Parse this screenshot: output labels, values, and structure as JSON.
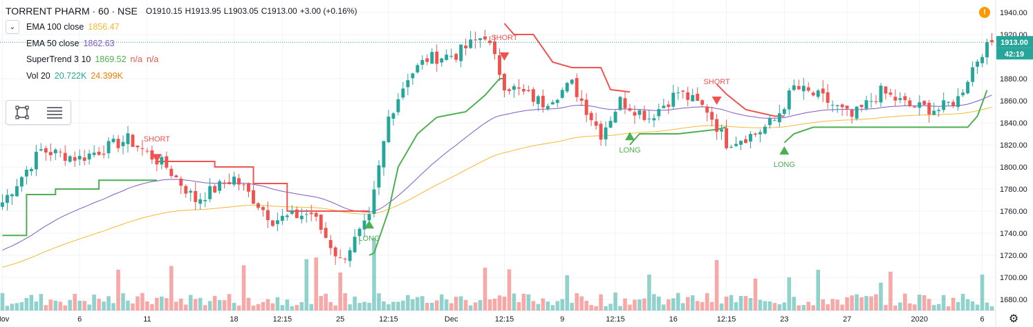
{
  "header": {
    "title": "TORRENT PHARM · 60 · NSE",
    "open": "O1910.15",
    "high": "H1913.95",
    "low": "L1903.05",
    "close": "C1913.00",
    "change": "+3.00 (+0.16%)"
  },
  "indicators": [
    {
      "name": "EMA 100 close",
      "value": "1856.47",
      "color": "#f5b931"
    },
    {
      "name": "EMA 50 close",
      "value": "1862.63",
      "color": "#7e57c2"
    },
    {
      "name": "SuperTrend 3 10",
      "value": "1869.52",
      "extra1": "n/a",
      "extra2": "n/a",
      "color": "#4caf50",
      "extra_color": "#ef5350"
    },
    {
      "name": "Vol 20",
      "value": "20.722K",
      "extra1": "24.399K",
      "color": "#26a69a",
      "extra_color": "#f57c00"
    }
  ],
  "price_tag": {
    "value": "1913.00",
    "countdown": "42:19"
  },
  "chart_data": {
    "type": "candlestick",
    "symbol": "TORRENT PHARM",
    "interval": "60",
    "exchange": "NSE",
    "ylim": [
      1675,
      1945
    ],
    "y_ticks": [
      "1940.00",
      "1920.00",
      "1880.00",
      "1860.00",
      "1840.00",
      "1820.00",
      "1800.00",
      "1780.00",
      "1760.00",
      "1740.00",
      "1720.00",
      "1700.00",
      "1680.00"
    ],
    "x_ticks": [
      {
        "label": "Nov",
        "bar": 0
      },
      {
        "label": "6",
        "bar": 16
      },
      {
        "label": "11",
        "bar": 30
      },
      {
        "label": "18",
        "bar": 48
      },
      {
        "label": "12:15",
        "bar": 58
      },
      {
        "label": "25",
        "bar": 70
      },
      {
        "label": "12:15",
        "bar": 80
      },
      {
        "label": "Dec",
        "bar": 93
      },
      {
        "label": "12:15",
        "bar": 104
      },
      {
        "label": "9",
        "bar": 116
      },
      {
        "label": "12:15",
        "bar": 127
      },
      {
        "label": "16",
        "bar": 139
      },
      {
        "label": "12:15",
        "bar": 150
      },
      {
        "label": "23",
        "bar": 162
      },
      {
        "label": "27",
        "bar": 175
      },
      {
        "label": "2020",
        "bar": 190
      },
      {
        "label": "6",
        "bar": 203
      }
    ],
    "key_closes": [
      {
        "bar": 0,
        "close": 1768
      },
      {
        "bar": 8,
        "close": 1815
      },
      {
        "bar": 16,
        "close": 1808
      },
      {
        "bar": 26,
        "close": 1825
      },
      {
        "bar": 34,
        "close": 1800
      },
      {
        "bar": 40,
        "close": 1770
      },
      {
        "bar": 48,
        "close": 1790
      },
      {
        "bar": 56,
        "close": 1752
      },
      {
        "bar": 64,
        "close": 1758
      },
      {
        "bar": 70,
        "close": 1715
      },
      {
        "bar": 76,
        "close": 1752
      },
      {
        "bar": 80,
        "close": 1845
      },
      {
        "bar": 84,
        "close": 1882
      },
      {
        "bar": 88,
        "close": 1898
      },
      {
        "bar": 94,
        "close": 1902
      },
      {
        "bar": 100,
        "close": 1920
      },
      {
        "bar": 104,
        "close": 1875
      },
      {
        "bar": 112,
        "close": 1858
      },
      {
        "bar": 118,
        "close": 1875
      },
      {
        "bar": 124,
        "close": 1830
      },
      {
        "bar": 128,
        "close": 1860
      },
      {
        "bar": 134,
        "close": 1845
      },
      {
        "bar": 140,
        "close": 1868
      },
      {
        "bar": 146,
        "close": 1852
      },
      {
        "bar": 150,
        "close": 1822
      },
      {
        "bar": 156,
        "close": 1830
      },
      {
        "bar": 160,
        "close": 1842
      },
      {
        "bar": 164,
        "close": 1872
      },
      {
        "bar": 170,
        "close": 1862
      },
      {
        "bar": 176,
        "close": 1845
      },
      {
        "bar": 182,
        "close": 1868
      },
      {
        "bar": 188,
        "close": 1855
      },
      {
        "bar": 194,
        "close": 1852
      },
      {
        "bar": 198,
        "close": 1862
      },
      {
        "bar": 201,
        "close": 1890
      },
      {
        "bar": 204,
        "close": 1913
      }
    ],
    "supertrend_up": [
      {
        "from": 0,
        "to": 5,
        "level": 1738
      },
      {
        "from": 5,
        "to": 11,
        "level": 1775
      },
      {
        "from": 11,
        "to": 20,
        "level": 1780
      },
      {
        "from": 20,
        "to": 32,
        "level": 1788
      }
    ],
    "supertrend_down": [
      {
        "from": 32,
        "to": 44,
        "level": 1805
      },
      {
        "from": 44,
        "to": 52,
        "level": 1800
      },
      {
        "from": 52,
        "to": 59,
        "level": 1785
      },
      {
        "from": 59,
        "to": 76,
        "level": 1760
      }
    ],
    "signals": [
      {
        "label": "SHORT",
        "bar": 32,
        "price": 1808,
        "dir": "down"
      },
      {
        "label": "LONG",
        "bar": 76,
        "price": 1748,
        "dir": "up"
      },
      {
        "label": "SHORT",
        "bar": 104,
        "price": 1900,
        "dir": "down"
      },
      {
        "label": "LONG",
        "bar": 130,
        "price": 1828,
        "dir": "up"
      },
      {
        "label": "SHORT",
        "bar": 148,
        "price": 1860,
        "dir": "down"
      },
      {
        "label": "LONG",
        "bar": 162,
        "price": 1815,
        "dir": "up"
      }
    ],
    "ema100_last": 1856.47,
    "ema50_last": 1862.63,
    "supertrend_last": 1869.52,
    "volume_last": "20.722K",
    "volume_ma_last": "24.399K",
    "last_price": 1913.0
  }
}
